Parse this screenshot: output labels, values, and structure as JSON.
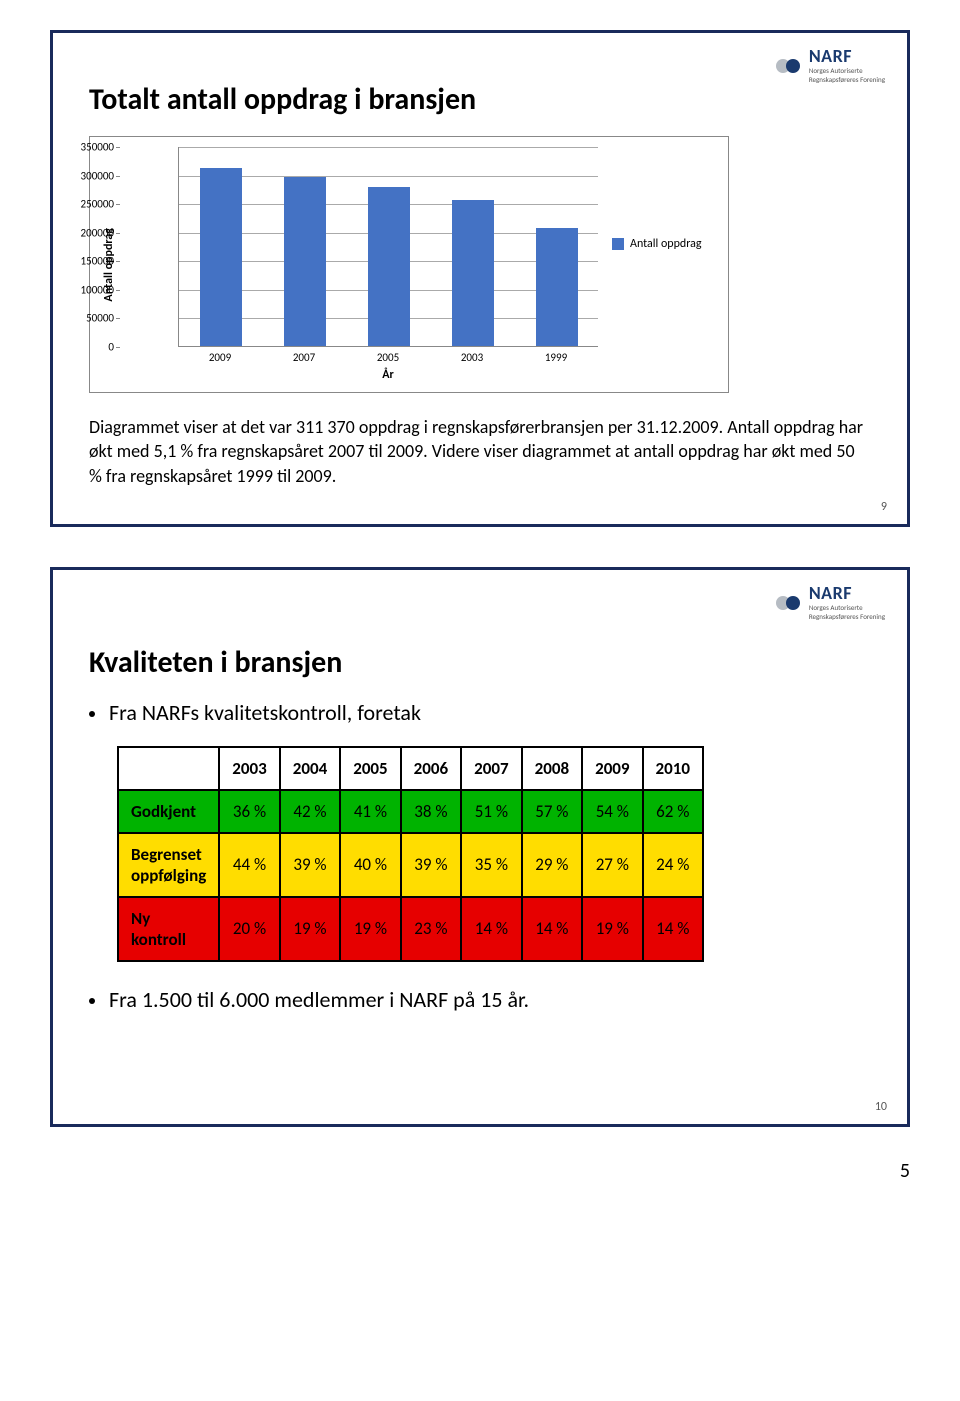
{
  "logo": {
    "main": "NARF",
    "sub1": "Norges Autoriserte",
    "sub2": "Regnskapsføreres Forening",
    "blue": "#1a3a6e",
    "silver": "#b6bcc3"
  },
  "slide1": {
    "title": "Totalt antall oppdrag i bransjen",
    "chart": {
      "ylabel": "Antall oppdrag",
      "xlabel": "År",
      "categories": [
        "2009",
        "2007",
        "2005",
        "2003",
        "1999"
      ],
      "values": [
        311370,
        296000,
        278000,
        255000,
        207000
      ],
      "ymax": 350000,
      "ystep": 50000,
      "bar_color": "#4472c4",
      "grid_color": "#aaaaaa",
      "legend_label": "Antall oppdrag"
    },
    "body": "Diagrammet viser at det var 311 370 oppdrag i regnskapsførerbransjen per 31.12.2009. Antall oppdrag har økt med 5,1 % fra regnskapsåret 2007 til 2009. Videre viser diagrammet at antall oppdrag har økt med 50 % fra regnskapsåret 1999 til 2009.",
    "num": "9"
  },
  "slide2": {
    "title": "Kvaliteten i bransjen",
    "bullet1": "Fra NARFs kvalitetskontroll, foretak",
    "table": {
      "years": [
        "2003",
        "2004",
        "2005",
        "2006",
        "2007",
        "2008",
        "2009",
        "2010"
      ],
      "rows": [
        {
          "label": "Godkjent",
          "bg": "#00b300",
          "vals": [
            "36 %",
            "42 %",
            "41 %",
            "38 %",
            "51 %",
            "57 %",
            "54 %",
            "62 %"
          ]
        },
        {
          "label": "Begrenset oppfølging",
          "bg": "#ffdd00",
          "vals": [
            "44 %",
            "39 %",
            "40 %",
            "39 %",
            "35 %",
            "29 %",
            "27 %",
            "24 %"
          ]
        },
        {
          "label": "Ny kontroll",
          "bg": "#e60000",
          "vals": [
            "20 %",
            "19 %",
            "19 %",
            "23 %",
            "14 %",
            "14 %",
            "19 %",
            "14 %"
          ]
        }
      ]
    },
    "bullet2": "Fra 1.500 til 6.000 medlemmer i NARF på 15 år.",
    "num": "10"
  },
  "page_number": "5"
}
